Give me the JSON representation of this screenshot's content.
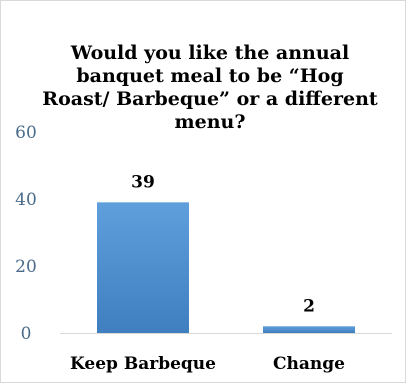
{
  "chart_data": {
    "type": "bar",
    "title": "Would you like the annual banquet meal to be “Hog Roast/ Barbeque” or a different menu?",
    "categories": [
      "Keep Barbeque",
      "Change"
    ],
    "values": [
      39,
      2
    ],
    "data_labels": [
      "39",
      "2"
    ],
    "ylim": [
      0,
      60
    ],
    "yticks": [
      0,
      20,
      40,
      60
    ],
    "ytick_labels": [
      "0",
      "20",
      "40",
      "60"
    ],
    "xlabel": "",
    "ylabel": "",
    "grid": false,
    "legend": "none",
    "bar_color": "#5b9bd5"
  }
}
